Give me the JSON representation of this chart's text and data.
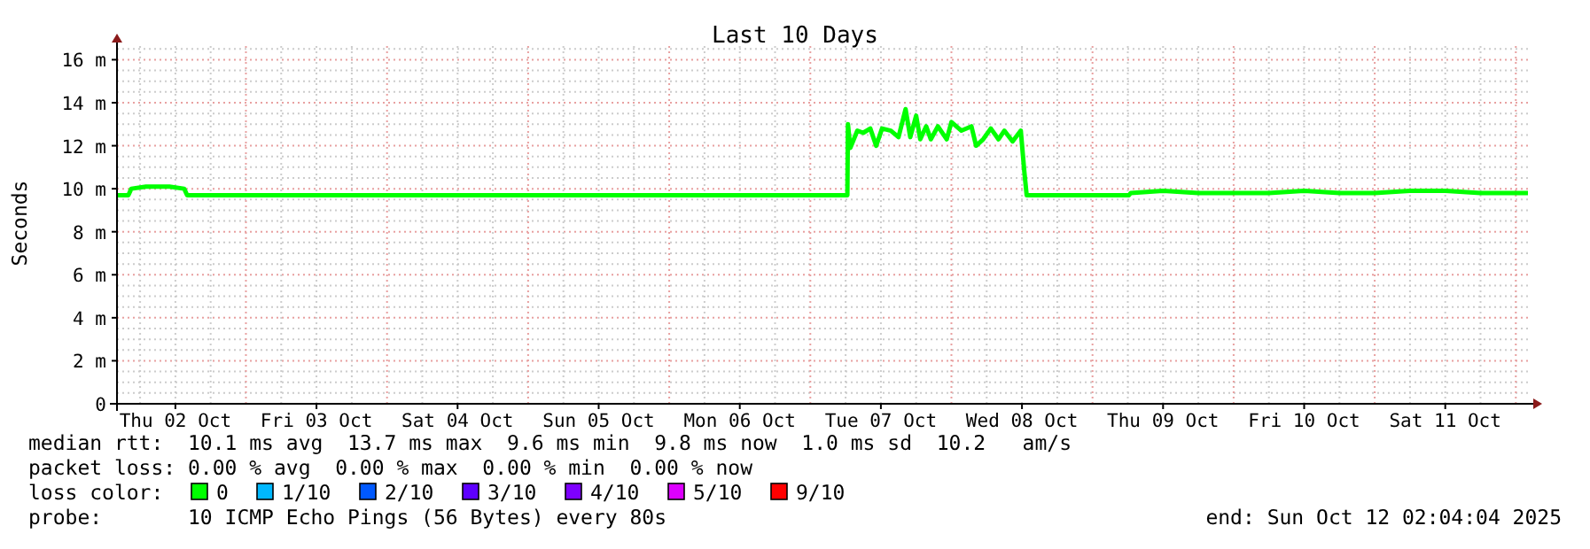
{
  "chart_data": {
    "type": "line",
    "title": "Last 10 Days",
    "ylabel": "Seconds",
    "legend_title": "loss color:",
    "legend": "bottom",
    "grid": true,
    "line_style": "solid",
    "marker": "none",
    "xlim": [
      "2025-10-02T02:04",
      "2025-10-12T02:04"
    ],
    "xticks": [
      {
        "value": "2025-10-02T12:00",
        "label": "Thu 02 Oct"
      },
      {
        "value": "2025-10-03T12:00",
        "label": "Fri 03 Oct"
      },
      {
        "value": "2025-10-04T12:00",
        "label": "Sat 04 Oct"
      },
      {
        "value": "2025-10-05T12:00",
        "label": "Sun 05 Oct"
      },
      {
        "value": "2025-10-06T12:00",
        "label": "Mon 06 Oct"
      },
      {
        "value": "2025-10-07T12:00",
        "label": "Tue 07 Oct"
      },
      {
        "value": "2025-10-08T12:00",
        "label": "Wed 08 Oct"
      },
      {
        "value": "2025-10-09T12:00",
        "label": "Thu 09 Oct"
      },
      {
        "value": "2025-10-10T12:00",
        "label": "Fri 10 Oct"
      },
      {
        "value": "2025-10-11T12:00",
        "label": "Sat 11 Oct"
      }
    ],
    "ylim": [
      0,
      16.8
    ],
    "yticks": [
      0,
      {
        "value": 2,
        "label": "2 m"
      },
      {
        "value": 4,
        "label": "4 m"
      },
      {
        "value": 6,
        "label": "6 m"
      },
      {
        "value": 8,
        "label": "8 m"
      },
      {
        "value": 10,
        "label": "10 m"
      },
      {
        "value": 12,
        "label": "12 m"
      },
      {
        "value": 14,
        "label": "14 m"
      },
      {
        "value": 16,
        "label": "16 m"
      }
    ],
    "x": [
      "2025-10-02T02:04",
      "2025-10-02T04:00",
      "2025-10-02T04:30",
      "2025-10-02T07:00",
      "2025-10-02T09:00",
      "2025-10-02T11:00",
      "2025-10-02T13:30",
      "2025-10-02T14:00",
      "2025-10-02T20:00",
      "2025-10-03T06:00",
      "2025-10-03T18:00",
      "2025-10-04T06:00",
      "2025-10-04T18:00",
      "2025-10-05T06:00",
      "2025-10-05T18:00",
      "2025-10-06T06:00",
      "2025-10-06T18:00",
      "2025-10-07T06:00",
      "2025-10-07T06:18",
      "2025-10-07T06:24",
      "2025-10-07T06:48",
      "2025-10-07T07:24",
      "2025-10-07T08:00",
      "2025-10-07T09:00",
      "2025-10-07T10:12",
      "2025-10-07T11:12",
      "2025-10-07T12:12",
      "2025-10-07T13:42",
      "2025-10-07T15:00",
      "2025-10-07T16:12",
      "2025-10-07T17:00",
      "2025-10-07T18:00",
      "2025-10-07T18:42",
      "2025-10-07T19:42",
      "2025-10-07T20:30",
      "2025-10-07T21:42",
      "2025-10-07T23:12",
      "2025-10-08T00:00",
      "2025-10-08T01:42",
      "2025-10-08T03:24",
      "2025-10-08T04:12",
      "2025-10-08T05:24",
      "2025-10-08T06:42",
      "2025-10-08T08:00",
      "2025-10-08T09:00",
      "2025-10-08T10:24",
      "2025-10-08T11:48",
      "2025-10-08T12:24",
      "2025-10-08T12:48",
      "2025-10-08T18:00",
      "2025-10-09T00:00",
      "2025-10-09T06:12",
      "2025-10-09T06:30",
      "2025-10-09T12:00",
      "2025-10-09T18:00",
      "2025-10-10T00:00",
      "2025-10-10T06:00",
      "2025-10-10T12:00",
      "2025-10-10T18:00",
      "2025-10-11T00:00",
      "2025-10-11T06:00",
      "2025-10-11T12:00",
      "2025-10-11T18:00",
      "2025-10-12T02:04"
    ],
    "series": [
      {
        "name": "0",
        "color": "#00ff00",
        "values": [
          9.7,
          9.7,
          10.0,
          10.1,
          10.1,
          10.1,
          10.0,
          9.7,
          9.7,
          9.7,
          9.7,
          9.7,
          9.7,
          9.7,
          9.7,
          9.7,
          9.7,
          9.7,
          9.7,
          13.0,
          11.9,
          12.3,
          12.7,
          12.6,
          12.8,
          12.0,
          12.8,
          12.7,
          12.4,
          13.7,
          12.4,
          13.4,
          12.3,
          12.9,
          12.3,
          12.9,
          12.3,
          13.1,
          12.7,
          12.9,
          12.0,
          12.3,
          12.8,
          12.3,
          12.7,
          12.2,
          12.7,
          10.8,
          9.7,
          9.7,
          9.7,
          9.7,
          9.8,
          9.9,
          9.8,
          9.8,
          9.8,
          9.9,
          9.8,
          9.8,
          9.9,
          9.9,
          9.8,
          9.8
        ]
      },
      {
        "name": "1/10",
        "color": "#00b8ff",
        "values": [
          null,
          null,
          null,
          null,
          null,
          null,
          null,
          null,
          null,
          null,
          null,
          null,
          null,
          null,
          null,
          null,
          null,
          null,
          null,
          null,
          null,
          null,
          null,
          null,
          null,
          null,
          null,
          null,
          null,
          null,
          null,
          null,
          null,
          null,
          null,
          null,
          null,
          null,
          null,
          null,
          null,
          null,
          null,
          null,
          null,
          null,
          null,
          null,
          null,
          null,
          null,
          null,
          null,
          null,
          null,
          null,
          null,
          null,
          null,
          null,
          null,
          null,
          null,
          null
        ]
      },
      {
        "name": "2/10",
        "color": "#0059ff",
        "values": [
          null,
          null,
          null,
          null,
          null,
          null,
          null,
          null,
          null,
          null,
          null,
          null,
          null,
          null,
          null,
          null,
          null,
          null,
          null,
          null,
          null,
          null,
          null,
          null,
          null,
          null,
          null,
          null,
          null,
          null,
          null,
          null,
          null,
          null,
          null,
          null,
          null,
          null,
          null,
          null,
          null,
          null,
          null,
          null,
          null,
          null,
          null,
          null,
          null,
          null,
          null,
          null,
          null,
          null,
          null,
          null,
          null,
          null,
          null,
          null,
          null,
          null,
          null,
          null
        ]
      },
      {
        "name": "3/10",
        "color": "#5e00ff",
        "values": [
          null,
          null,
          null,
          null,
          null,
          null,
          null,
          null,
          null,
          null,
          null,
          null,
          null,
          null,
          null,
          null,
          null,
          null,
          null,
          null,
          null,
          null,
          null,
          null,
          null,
          null,
          null,
          null,
          null,
          null,
          null,
          null,
          null,
          null,
          null,
          null,
          null,
          null,
          null,
          null,
          null,
          null,
          null,
          null,
          null,
          null,
          null,
          null,
          null,
          null,
          null,
          null,
          null,
          null,
          null,
          null,
          null,
          null,
          null,
          null,
          null,
          null,
          null,
          null
        ]
      },
      {
        "name": "4/10",
        "color": "#7e00ff",
        "values": [
          null,
          null,
          null,
          null,
          null,
          null,
          null,
          null,
          null,
          null,
          null,
          null,
          null,
          null,
          null,
          null,
          null,
          null,
          null,
          null,
          null,
          null,
          null,
          null,
          null,
          null,
          null,
          null,
          null,
          null,
          null,
          null,
          null,
          null,
          null,
          null,
          null,
          null,
          null,
          null,
          null,
          null,
          null,
          null,
          null,
          null,
          null,
          null,
          null,
          null,
          null,
          null,
          null,
          null,
          null,
          null,
          null,
          null,
          null,
          null,
          null,
          null,
          null,
          null
        ]
      },
      {
        "name": "5/10",
        "color": "#dd00ff",
        "values": [
          null,
          null,
          null,
          null,
          null,
          null,
          null,
          null,
          null,
          null,
          null,
          null,
          null,
          null,
          null,
          null,
          null,
          null,
          null,
          null,
          null,
          null,
          null,
          null,
          null,
          null,
          null,
          null,
          null,
          null,
          null,
          null,
          null,
          null,
          null,
          null,
          null,
          null,
          null,
          null,
          null,
          null,
          null,
          null,
          null,
          null,
          null,
          null,
          null,
          null,
          null,
          null,
          null,
          null,
          null,
          null,
          null,
          null,
          null,
          null,
          null,
          null,
          null,
          null
        ]
      },
      {
        "name": "9/10",
        "color": "#ff0000",
        "values": [
          null,
          null,
          null,
          null,
          null,
          null,
          null,
          null,
          null,
          null,
          null,
          null,
          null,
          null,
          null,
          null,
          null,
          null,
          null,
          null,
          null,
          null,
          null,
          null,
          null,
          null,
          null,
          null,
          null,
          null,
          null,
          null,
          null,
          null,
          null,
          null,
          null,
          null,
          null,
          null,
          null,
          null,
          null,
          null,
          null,
          null,
          null,
          null,
          null,
          null,
          null,
          null,
          null,
          null,
          null,
          null,
          null,
          null,
          null,
          null,
          null,
          null,
          null,
          null
        ]
      }
    ],
    "annotations": [
      "median rtt:  10.1 ms avg  13.7 ms max  9.6 ms min  9.8 ms now  1.0 ms sd  10.2   am/s",
      "packet loss: 0.00 % avg  0.00 % max  0.00 % min  0.00 % now",
      "probe:       10 ICMP Echo Pings (56 Bytes) every 80s",
      "end: Sun Oct 12 02:04:04 2025"
    ]
  }
}
